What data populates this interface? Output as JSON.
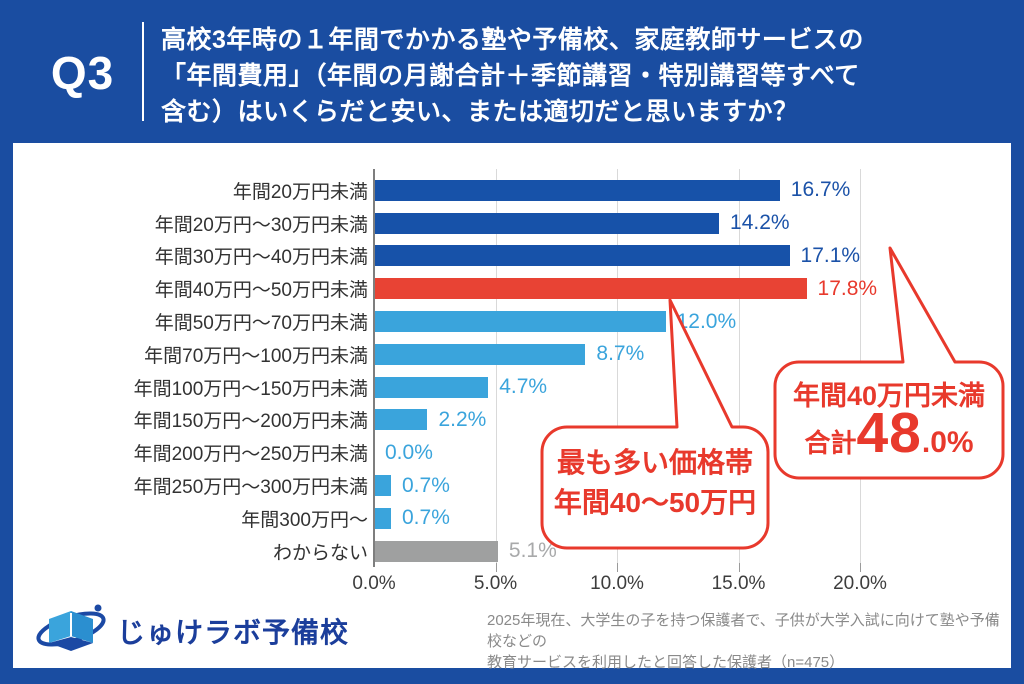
{
  "colors": {
    "brand_blue": "#1A4DA1",
    "bar_dark": "#1752A9",
    "bar_light": "#3AA4DC",
    "bar_red": "#E84334",
    "bar_gray": "#9FA0A0",
    "label_dark": "#1B52A8",
    "label_light": "#3AA4DC",
    "label_red": "#E8392C",
    "label_gray": "#A8A9AA",
    "accent_red": "#E8392C"
  },
  "header": {
    "q_label": "Q3",
    "question_lines": [
      "高校3年時の１年間でかかる塾や予備校、家庭教師サービスの",
      "「年間費用」（年間の月謝合計＋季節講習・特別講習等すべて",
      "含む）はいくらだと安い、または適切だと思いますか？"
    ]
  },
  "chart_data": {
    "type": "bar",
    "orientation": "horizontal",
    "title": "",
    "xlabel": "",
    "ylabel": "",
    "xlim": [
      0,
      20
    ],
    "grid": true,
    "legend": false,
    "x_ticks": [
      "0.0%",
      "5.0%",
      "10.0%",
      "15.0%",
      "20.0%"
    ],
    "categories": [
      "年間20万円未満",
      "年間20万円～30万円未満",
      "年間30万円～40万円未満",
      "年間40万円～50万円未満",
      "年間50万円～70万円未満",
      "年間70万円～100万円未満",
      "年間100万円～150万円未満",
      "年間150万円～200万円未満",
      "年間200万円～250万円未満",
      "年間250万円～300万円未満",
      "年間300万円～",
      "わからない"
    ],
    "values": [
      16.7,
      14.2,
      17.1,
      17.8,
      12.0,
      8.7,
      4.7,
      2.2,
      0.0,
      0.7,
      0.7,
      5.1
    ],
    "value_labels": [
      "16.7%",
      "14.2%",
      "17.1%",
      "17.8%",
      "12.0%",
      "8.7%",
      "4.7%",
      "2.2%",
      "0.0%",
      "0.7%",
      "0.7%",
      "5.1%"
    ],
    "bar_color_keys": [
      "dark",
      "dark",
      "dark",
      "red",
      "light",
      "light",
      "light",
      "light",
      "light",
      "light",
      "light",
      "gray"
    ]
  },
  "callouts": {
    "mode_price": {
      "lines": [
        "最も多い価格帯",
        "年間40～50万円"
      ]
    },
    "under_40": {
      "title": "年間40万円未満",
      "prefix": "合計",
      "big": "48",
      "small": ".0%"
    }
  },
  "footer": {
    "logo_text": "じゅけラボ予備校",
    "note_lines": [
      "2025年現在、大学生の子を持つ保護者で、子供が大学入試に向けて塾や予備校などの",
      "教育サービスを利用したと回答した保護者（n=475）"
    ]
  }
}
